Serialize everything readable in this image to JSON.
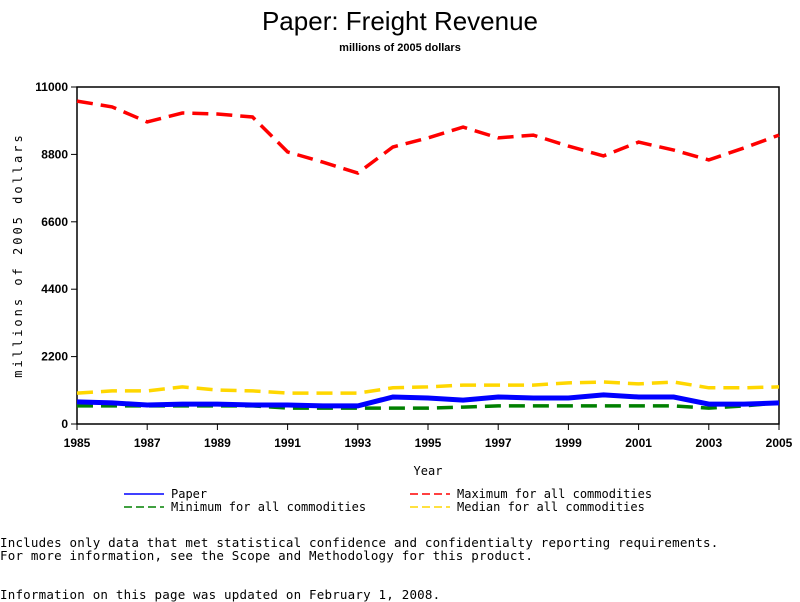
{
  "chart_data": {
    "type": "line",
    "title": "Paper: Freight Revenue",
    "subtitle": "millions of 2005 dollars",
    "xlabel": "Year",
    "ylabel": "millions of 2005 dollars",
    "x": [
      1985,
      1986,
      1987,
      1988,
      1989,
      1990,
      1991,
      1992,
      1993,
      1994,
      1995,
      1996,
      1997,
      1998,
      1999,
      2000,
      2001,
      2002,
      2003,
      2004,
      2005
    ],
    "xlim": [
      1985,
      2005
    ],
    "ylim": [
      0,
      11000
    ],
    "x_ticks": [
      "1985",
      "1987",
      "1989",
      "1991",
      "1993",
      "1995",
      "1997",
      "1999",
      "2001",
      "2003",
      "2005"
    ],
    "y_ticks": [
      "0",
      "2200",
      "4400",
      "6600",
      "8800",
      "11000"
    ],
    "grid": false,
    "legend_position": "bottom",
    "series": [
      {
        "name": "Paper",
        "color": "#0000ff",
        "style": "solid",
        "values": [
          720,
          690,
          620,
          650,
          650,
          620,
          620,
          590,
          590,
          880,
          850,
          780,
          880,
          850,
          850,
          950,
          880,
          880,
          650,
          650,
          690
        ]
      },
      {
        "name": "Maximum for all commodities",
        "color": "#ff0000",
        "style": "dashed",
        "values": [
          10540,
          10350,
          9860,
          10150,
          10120,
          10020,
          8880,
          8550,
          8190,
          9040,
          9340,
          9690,
          9340,
          9430,
          9070,
          8750,
          9200,
          8940,
          8620,
          9010,
          9430
        ]
      },
      {
        "name": "Minimum for all commodities",
        "color": "#008000",
        "style": "dashed",
        "values": [
          590,
          590,
          590,
          590,
          590,
          590,
          520,
          520,
          520,
          520,
          520,
          550,
          590,
          590,
          590,
          590,
          590,
          590,
          520,
          590,
          690
        ]
      },
      {
        "name": "Median for all commodities",
        "color": "#ffd700",
        "style": "dashed",
        "values": [
          1010,
          1080,
          1080,
          1210,
          1110,
          1080,
          1010,
          1010,
          1010,
          1180,
          1210,
          1270,
          1270,
          1270,
          1340,
          1370,
          1310,
          1370,
          1180,
          1180,
          1210
        ]
      }
    ]
  },
  "notes": {
    "line1": "Includes only data that met statistical confidence and confidentialty reporting requirements.",
    "line2": "For more information, see the Scope and Methodology for this product.",
    "updated": "Information on this page was updated on February 1, 2008."
  }
}
